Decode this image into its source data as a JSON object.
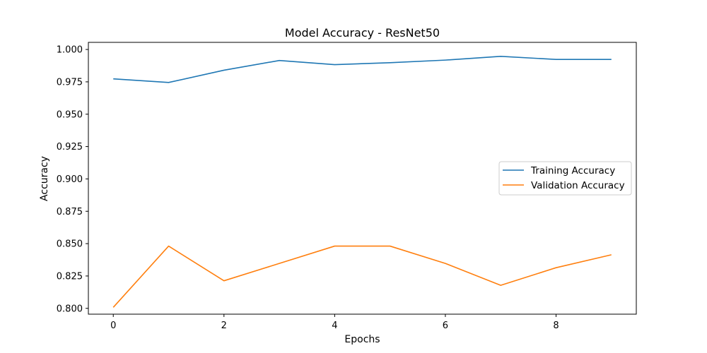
{
  "chart_data": {
    "type": "line",
    "title": "Model Accuracy - ResNet50",
    "xlabel": "Epochs",
    "ylabel": "Accuracy",
    "xlim": [
      -0.45,
      9.45
    ],
    "ylim": [
      0.7955,
      1.0055
    ],
    "x": [
      0,
      1,
      2,
      3,
      4,
      5,
      6,
      7,
      8,
      9
    ],
    "x_ticks": [
      0,
      2,
      4,
      6,
      8
    ],
    "x_tick_labels": [
      "0",
      "2",
      "4",
      "6",
      "8"
    ],
    "y_ticks": [
      0.8,
      0.825,
      0.85,
      0.875,
      0.9,
      0.925,
      0.95,
      0.975,
      1.0
    ],
    "y_tick_labels": [
      "0.800",
      "0.825",
      "0.850",
      "0.875",
      "0.900",
      "0.925",
      "0.950",
      "0.975",
      "1.000"
    ],
    "grid": false,
    "legend_position": "center-right",
    "series": [
      {
        "name": "Training Accuracy",
        "color": "#1f77b4",
        "values": [
          0.9773,
          0.9745,
          0.984,
          0.9915,
          0.9883,
          0.9898,
          0.9918,
          0.9947,
          0.9923,
          0.9923
        ]
      },
      {
        "name": "Validation Accuracy",
        "color": "#ff7f0e",
        "values": [
          0.8008,
          0.8481,
          0.8213,
          0.8347,
          0.8481,
          0.8481,
          0.8347,
          0.8178,
          0.8314,
          0.8414
        ]
      }
    ]
  }
}
